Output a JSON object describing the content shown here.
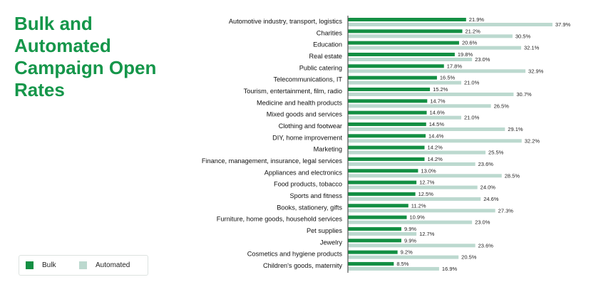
{
  "title": "Bulk and Automated Campaign Open Rates",
  "legend": {
    "bulk": "Bulk",
    "automated": "Automated"
  },
  "colors": {
    "bulk": "#138f43",
    "automated": "#bcd9cf",
    "title": "#15964a"
  },
  "chart_data": {
    "type": "bar",
    "orientation": "horizontal",
    "title": "Bulk and Automated Campaign Open Rates",
    "categories": [
      "Automotive industry, transport, logistics",
      "Charities",
      "Education",
      "Real estate",
      "Public catering",
      "Telecommunications, IT",
      "Tourism, entertainment, film, radio",
      "Medicine and health products",
      "Mixed goods and services",
      "Clothing and footwear",
      "DIY, home improvement",
      "Marketing",
      "Finance, management, insurance, legal services",
      "Appliances and electronics",
      "Food products, tobacco",
      "Sports and fitness",
      "Books, stationery, gifts",
      "Furniture, home goods, household services",
      "Pet supplies",
      "Jewelry",
      "Cosmetics and hygiene products",
      "Children's goods, maternity"
    ],
    "series": [
      {
        "name": "Bulk",
        "values": [
          21.9,
          21.2,
          20.6,
          19.8,
          17.8,
          16.5,
          15.2,
          14.7,
          14.6,
          14.5,
          14.4,
          14.2,
          14.2,
          13.0,
          12.7,
          12.5,
          11.2,
          10.9,
          9.9,
          9.9,
          9.2,
          8.5
        ],
        "labels": [
          "21.9%",
          "21.2%",
          "20.6%",
          "19.8%",
          "17.8%",
          "16.5%",
          "15.2%",
          "14.7%",
          "14.6%",
          "14.5%",
          "14.4%",
          "14.2%",
          "14.2%",
          "13.0%",
          "12.7%",
          "12.5%",
          "11.2%",
          "10.9%",
          "9.9%",
          "9.9%",
          "9.2%",
          "8.5%"
        ]
      },
      {
        "name": "Automated",
        "values": [
          37.9,
          30.5,
          32.1,
          23.0,
          32.9,
          21.0,
          30.7,
          26.5,
          21.0,
          29.1,
          32.2,
          25.5,
          23.6,
          28.5,
          24.0,
          24.6,
          27.3,
          23.0,
          12.7,
          23.6,
          20.5,
          16.9
        ],
        "labels": [
          "37.9%",
          "30.5%",
          "32.1%",
          "23.0%",
          "32.9%",
          "21.0%",
          "30.7%",
          "26.5%",
          "21.0%",
          "29.1%",
          "32.2%",
          "25.5%",
          "23.6%",
          "28.5%",
          "24.0%",
          "24.6%",
          "27.3%",
          "23.0%",
          "12.7%",
          "23.6%",
          "20.5%",
          "16.9%"
        ]
      }
    ],
    "xlim": [
      0,
      40
    ],
    "grid": false,
    "legend_position": "bottom-left"
  }
}
